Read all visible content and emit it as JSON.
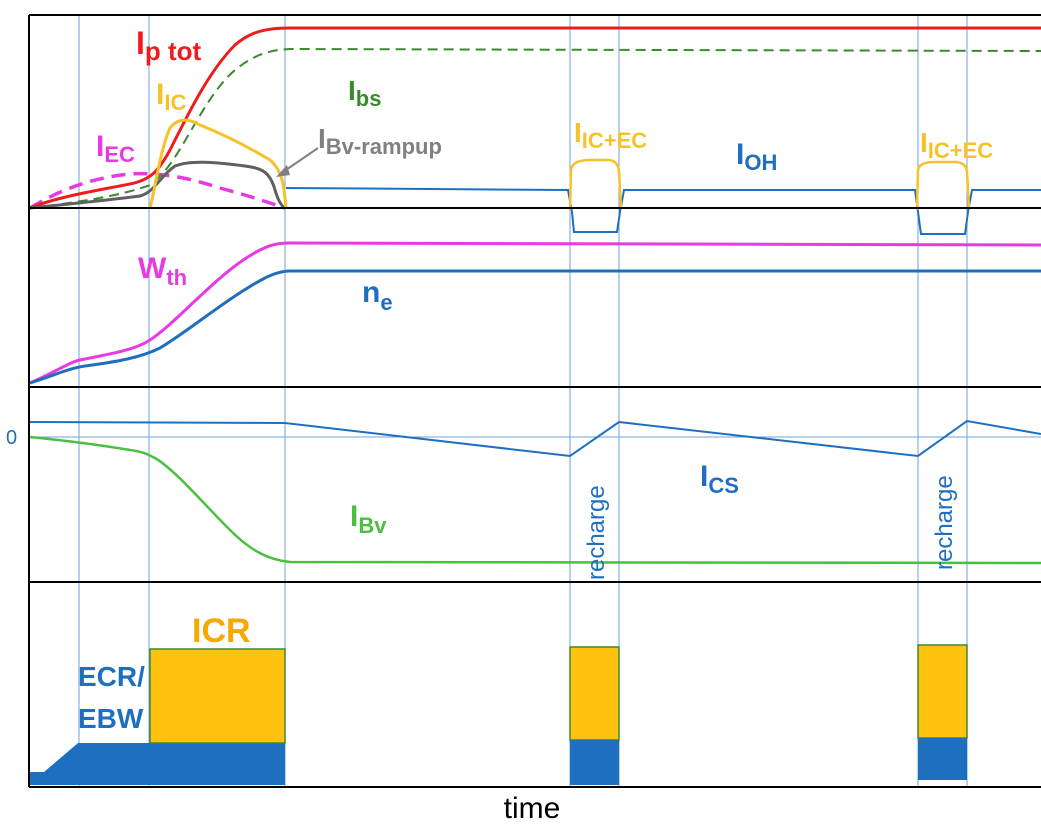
{
  "colors": {
    "red": "#ee1c1c",
    "green": "#3a8a2e",
    "orange": "#f6c22a",
    "magenta": "#e83ae2",
    "gray": "#606060",
    "blue": "#1f6fc0",
    "lightgreen": "#4cbf43",
    "icr_fill": "#ffc20e",
    "ecr_fill": "#1f6fc0",
    "frame": "#000000",
    "vline": "#6fa0dc"
  },
  "panel1": {
    "ip_tot": {
      "main": "I",
      "sub": "p tot"
    },
    "i_ic": {
      "main": "I",
      "sub": "IC"
    },
    "i_ec": {
      "main": "I",
      "sub": "EC"
    },
    "i_bs": {
      "main": "I",
      "sub": "bs"
    },
    "i_bv_rampup": {
      "main": "I",
      "sub": "Bv-rampup"
    },
    "i_ic_ec_1": {
      "main": "I",
      "sub": "IC+EC"
    },
    "i_ic_ec_2": {
      "main": "I",
      "sub": "IC+EC"
    },
    "i_oh": {
      "main": "I",
      "sub": "OH"
    }
  },
  "panel2": {
    "w_th": {
      "main": "W",
      "sub": "th"
    },
    "n_e": {
      "main": "n",
      "sub": "e"
    }
  },
  "panel3": {
    "zero": "0",
    "i_bv": {
      "main": "I",
      "sub": "Bv"
    },
    "i_cs": {
      "main": "I",
      "sub": "CS"
    },
    "recharge_1": "recharge",
    "recharge_2": "recharge"
  },
  "panel4": {
    "icr": "ICR",
    "ecr_line1": "ECR/",
    "ecr_line2": "EBW"
  },
  "xaxis": {
    "label": "time"
  }
}
